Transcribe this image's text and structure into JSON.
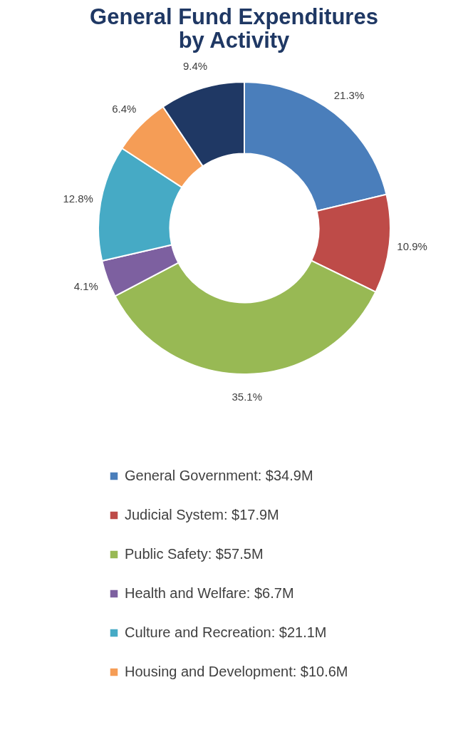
{
  "chart_data": {
    "type": "donut",
    "title": "General Fund Expenditures\nby Activity",
    "categories": [
      "General Government: $34.9M",
      "Judicial System: $17.9M",
      "Public Safety: $57.5M",
      "Health and Welfare: $6.7M",
      "Culture and Recreation: $21.1M",
      "Housing and Development: $10.6M",
      null
    ],
    "values": [
      21.3,
      10.9,
      35.1,
      4.1,
      12.8,
      6.4,
      9.4
    ],
    "value_labels": [
      "21.3%",
      "10.9%",
      "35.1%",
      "4.1%",
      "12.8%",
      "6.4%",
      "9.4%"
    ],
    "colors": [
      "#4a7ebb",
      "#be4b48",
      "#98b954",
      "#7d60a0",
      "#46aac5",
      "#f59d56",
      "#1f3864"
    ],
    "legend": "bottom"
  }
}
